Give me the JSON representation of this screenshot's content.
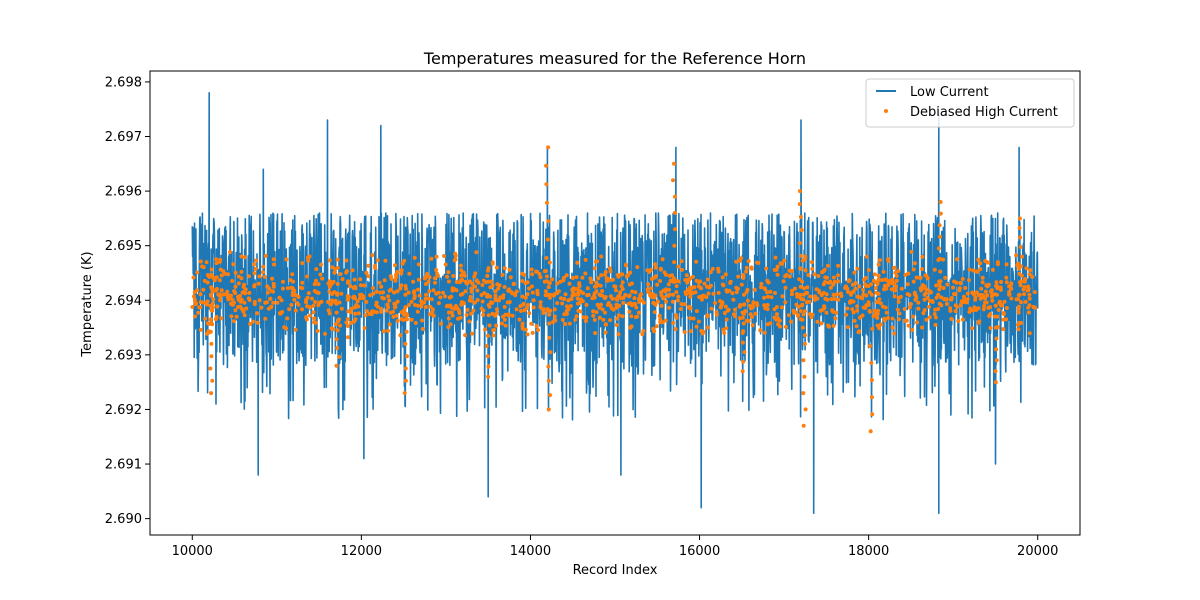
{
  "chart_data": {
    "type": "line",
    "title": "Temperatures measured for the Reference Horn",
    "xlabel": "Record Index",
    "ylabel": "Temperature (K)",
    "xlim": [
      9500,
      20500
    ],
    "ylim": [
      2.6897,
      2.6982
    ],
    "xticks": [
      10000,
      12000,
      14000,
      16000,
      18000,
      20000
    ],
    "xtick_labels": [
      "10000",
      "12000",
      "14000",
      "16000",
      "18000",
      "20000"
    ],
    "yticks": [
      2.69,
      2.691,
      2.692,
      2.693,
      2.694,
      2.695,
      2.696,
      2.697,
      2.698
    ],
    "ytick_labels": [
      "2.690",
      "2.691",
      "2.692",
      "2.693",
      "2.694",
      "2.695",
      "2.696",
      "2.697",
      "2.698"
    ],
    "legend_position": "top-right",
    "series": [
      {
        "name": "Low Current",
        "kind": "line",
        "color": "#1f77b4",
        "x_range": [
          10000,
          20000
        ],
        "center": 2.6941,
        "band_low": 2.6928,
        "band_high": 2.6956,
        "spikes": [
          {
            "x": 10200,
            "y": 2.6978
          },
          {
            "x": 10840,
            "y": 2.6964
          },
          {
            "x": 11600,
            "y": 2.6973
          },
          {
            "x": 12230,
            "y": 2.6972
          },
          {
            "x": 14200,
            "y": 2.6968
          },
          {
            "x": 15720,
            "y": 2.6968
          },
          {
            "x": 17200,
            "y": 2.6973
          },
          {
            "x": 18830,
            "y": 2.6974
          },
          {
            "x": 19780,
            "y": 2.6968
          },
          {
            "x": 10780,
            "y": 2.6908
          },
          {
            "x": 13500,
            "y": 2.6904
          },
          {
            "x": 15070,
            "y": 2.6908
          },
          {
            "x": 16020,
            "y": 2.6902
          },
          {
            "x": 17350,
            "y": 2.6901
          },
          {
            "x": 18830,
            "y": 2.6901
          },
          {
            "x": 19500,
            "y": 2.691
          },
          {
            "x": 12030,
            "y": 2.6911
          }
        ]
      },
      {
        "name": "Debiased High Current",
        "kind": "scatter",
        "color": "#ff7f0e",
        "x_range": [
          10000,
          20000
        ],
        "center": 2.6941,
        "band_low": 2.6937,
        "band_high": 2.6945,
        "outliers": [
          {
            "x": 14200,
            "y": 2.6968
          },
          {
            "x": 15700,
            "y": 2.6965
          },
          {
            "x": 17200,
            "y": 2.696
          },
          {
            "x": 18840,
            "y": 2.6958
          },
          {
            "x": 19800,
            "y": 2.6955
          },
          {
            "x": 12530,
            "y": 2.6923
          },
          {
            "x": 14220,
            "y": 2.692
          },
          {
            "x": 17240,
            "y": 2.6917
          },
          {
            "x": 18030,
            "y": 2.6916
          },
          {
            "x": 10230,
            "y": 2.6923
          },
          {
            "x": 13500,
            "y": 2.6926
          },
          {
            "x": 11720,
            "y": 2.6928
          },
          {
            "x": 16520,
            "y": 2.6927
          },
          {
            "x": 19500,
            "y": 2.6925
          }
        ]
      }
    ]
  }
}
